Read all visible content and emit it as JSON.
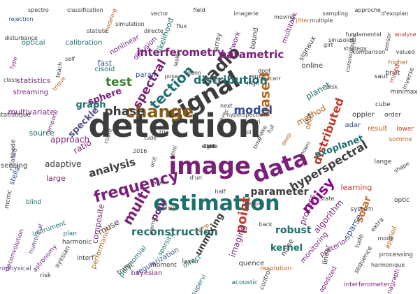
{
  "words": [
    {
      "text": "detection",
      "size": 46,
      "color": "c0",
      "rot": 0
    },
    {
      "text": "signal",
      "size": 34,
      "color": "c0",
      "rot": -30
    },
    {
      "text": "image",
      "size": 34,
      "color": "c1",
      "rot": 0
    },
    {
      "text": "data",
      "size": 32,
      "color": "c1",
      "rot": -20
    },
    {
      "text": "estimation",
      "size": 30,
      "color": "c2",
      "rot": 0
    },
    {
      "text": "frequency",
      "size": 22,
      "color": "c1",
      "rot": -15
    },
    {
      "text": "change",
      "size": 24,
      "color": "c3",
      "rot": 0
    },
    {
      "text": "radio",
      "size": 24,
      "color": "c0",
      "rot": -45
    },
    {
      "text": "tection",
      "size": 20,
      "color": "c2",
      "rot": -45
    },
    {
      "text": "multi",
      "size": 20,
      "color": "c1",
      "rot": -60
    },
    {
      "text": "based",
      "size": 19,
      "color": "c8",
      "rot": -90
    },
    {
      "text": "noisy",
      "size": 20,
      "color": "c15",
      "rot": -50
    },
    {
      "text": "model",
      "size": 16,
      "color": "c4",
      "rot": 0
    },
    {
      "text": "point",
      "size": 18,
      "color": "c5",
      "rot": -80
    },
    {
      "text": "phase",
      "size": 17,
      "color": "c0",
      "rot": 0
    },
    {
      "text": "spectral",
      "size": 17,
      "color": "c1",
      "rot": -60
    },
    {
      "text": "hyperspectral",
      "size": 16,
      "color": "c0",
      "rot": -30
    },
    {
      "text": "distributed",
      "size": 16,
      "color": "c5",
      "rot": -70
    },
    {
      "text": "distribution",
      "size": 16,
      "color": "c2",
      "rot": 0
    },
    {
      "text": "parametric",
      "size": 15,
      "color": "c1",
      "rot": 0
    },
    {
      "text": "interferometry",
      "size": 15,
      "color": "c1",
      "rot": 0
    },
    {
      "text": "reconstruction",
      "size": 15,
      "color": "c2",
      "rot": 0
    },
    {
      "text": "analysis",
      "size": 15,
      "color": "c0",
      "rot": -15
    },
    {
      "text": "test",
      "size": 17,
      "color": "c6",
      "rot": 0
    },
    {
      "text": "sphere",
      "size": 13,
      "color": "c1",
      "rot": -20
    },
    {
      "text": "graph",
      "size": 13,
      "color": "c2",
      "rot": 0
    },
    {
      "text": "speckle",
      "size": 13,
      "color": "c9",
      "rot": -45
    },
    {
      "text": "solar",
      "size": 14,
      "color": "c13",
      "rot": -70
    },
    {
      "text": "parameter",
      "size": 14,
      "color": "c0",
      "rot": 0
    },
    {
      "text": "exoplanet",
      "size": 13,
      "color": "c2",
      "rot": -20
    },
    {
      "text": "robust",
      "size": 14,
      "color": "c2",
      "rot": 0
    },
    {
      "text": "kernel",
      "size": 13,
      "color": "c2",
      "rot": 0
    },
    {
      "text": "unmixing",
      "size": 13,
      "color": "c0",
      "rot": -60
    },
    {
      "text": "pour",
      "size": 13,
      "color": "c1",
      "rot": -60
    },
    {
      "text": "muse",
      "size": 12,
      "color": "c0",
      "rot": -30
    },
    {
      "text": "composite",
      "size": 11,
      "color": "c1",
      "rot": -80
    },
    {
      "text": "adaptive",
      "size": 12,
      "color": "c0",
      "rot": 0
    },
    {
      "text": "approach",
      "size": 12,
      "color": "c1",
      "rot": 0
    },
    {
      "text": "ratio",
      "size": 12,
      "color": "c1",
      "rot": -30
    },
    {
      "text": "source",
      "size": 11,
      "color": "c2",
      "rot": 0
    },
    {
      "text": "planet",
      "size": 12,
      "color": "c2",
      "rot": -30
    },
    {
      "text": "method",
      "size": 12,
      "color": "c8",
      "rot": -30
    },
    {
      "text": "sparse",
      "size": 12,
      "color": "c4",
      "rot": -60
    },
    {
      "text": "algorithm",
      "size": 12,
      "color": "c1",
      "rot": -50
    },
    {
      "text": "process",
      "size": 12,
      "color": "c1",
      "rot": -70
    },
    {
      "text": "imaging",
      "size": 12,
      "color": "c1",
      "rot": -70
    },
    {
      "text": "learning",
      "size": 11,
      "color": "c5",
      "rot": 0
    },
    {
      "text": "performance",
      "size": 10,
      "color": "c8",
      "rot": -70
    },
    {
      "text": "large",
      "size": 11,
      "color": "c1",
      "rot": 0
    },
    {
      "text": "multivariate",
      "size": 11,
      "color": "c1",
      "rot": 0
    },
    {
      "text": "statistics",
      "size": 11,
      "color": "c1",
      "rot": 0
    },
    {
      "text": "fast",
      "size": 11,
      "color": "c4",
      "rot": 0
    },
    {
      "text": "likelihood",
      "size": 11,
      "color": "c2",
      "rot": -70
    },
    {
      "text": "param",
      "size": 10,
      "color": "c4",
      "rot": 0
    },
    {
      "text": "array",
      "size": 10,
      "color": "c0",
      "rot": -80
    },
    {
      "text": "network",
      "size": 10,
      "color": "c1",
      "rot": -70
    },
    {
      "text": "bound",
      "size": 10,
      "color": "c0",
      "rot": -80
    },
    {
      "text": "multitask",
      "size": 10,
      "color": "c1",
      "rot": -70
    },
    {
      "text": "signaux",
      "size": 10,
      "color": "c0",
      "rot": -60
    },
    {
      "text": "online",
      "size": 10,
      "color": "c0",
      "rot": 0
    },
    {
      "text": "cisoid",
      "size": 10,
      "color": "c2",
      "rot": 0
    },
    {
      "text": "nonlinear",
      "size": 10,
      "color": "c1",
      "rot": -30
    },
    {
      "text": "diffusion",
      "size": 10,
      "color": "c1",
      "rot": -45
    },
    {
      "text": "calibration",
      "size": 10,
      "color": "c2",
      "rot": 0
    },
    {
      "text": "optical",
      "size": 10,
      "color": "c2",
      "rot": 0
    },
    {
      "text": "streaming",
      "size": 10,
      "color": "c1",
      "rot": 0
    },
    {
      "text": "stellar",
      "size": 10,
      "color": "c4",
      "rot": -70
    },
    {
      "text": "sensing",
      "size": 10,
      "color": "c0",
      "rot": 0
    },
    {
      "text": "monitoring",
      "size": 10,
      "color": "c1",
      "rot": -50
    },
    {
      "text": "regularization",
      "size": 10,
      "color": "c4",
      "rot": -30
    },
    {
      "text": "direct",
      "size": 10,
      "color": "c2",
      "rot": -30
    },
    {
      "text": "bayesian",
      "size": 10,
      "color": "c1",
      "rot": 0
    },
    {
      "text": "polynomial",
      "size": 10,
      "color": "c2",
      "rot": -50
    },
    {
      "text": "posterior",
      "size": 10,
      "color": "c1",
      "rot": -30
    },
    {
      "text": "acoustic",
      "size": 9,
      "color": "c2",
      "rot": 0
    },
    {
      "text": "plan",
      "size": 9,
      "color": "c2",
      "rot": 0
    },
    {
      "text": "quence",
      "size": 10,
      "color": "c0",
      "rot": 0
    },
    {
      "text": "noise",
      "size": 10,
      "color": "c0",
      "rot": -60
    },
    {
      "text": "control",
      "size": 9,
      "color": "c0",
      "rot": -70
    },
    {
      "text": "linear",
      "size": 10,
      "color": "c0",
      "rot": -80
    },
    {
      "text": "adar",
      "size": 10,
      "color": "c4",
      "rot": 0
    },
    {
      "text": "oppler",
      "size": 10,
      "color": "c0",
      "rot": 0
    },
    {
      "text": "result",
      "size": 10,
      "color": "c8",
      "rot": 0
    },
    {
      "text": "cube",
      "size": 9,
      "color": "c0",
      "rot": 0
    },
    {
      "text": "order",
      "size": 9,
      "color": "c0",
      "rot": 0
    },
    {
      "text": "minimax",
      "size": 9,
      "color": "c0",
      "rot": 0
    },
    {
      "text": "higher",
      "size": 9,
      "color": "c8",
      "rot": 0
    },
    {
      "text": "inverse",
      "size": 9,
      "color": "c0",
      "rot": -70
    },
    {
      "text": "saut",
      "size": 9,
      "color": "c0",
      "rot": 0
    },
    {
      "text": "bruit",
      "size": 9,
      "color": "c0",
      "rot": 0
    },
    {
      "text": "mixed",
      "size": 9,
      "color": "c5",
      "rot": -70
    },
    {
      "text": "lower",
      "size": 9,
      "color": "c5",
      "rot": 0
    },
    {
      "text": "somme",
      "size": 9,
      "color": "c8",
      "rot": 0
    },
    {
      "text": "statistique",
      "size": 9,
      "color": "c0",
      "rot": 0
    },
    {
      "text": "thode",
      "size": 9,
      "color": "c0",
      "rot": -90
    },
    {
      "text": "related",
      "size": 9,
      "color": "c9",
      "rot": -80
    },
    {
      "text": "mcmc",
      "size": 9,
      "color": "c0",
      "rot": -80
    },
    {
      "text": "blind",
      "size": 9,
      "color": "c2",
      "rot": 0
    },
    {
      "text": "instrument",
      "size": 9,
      "color": "c2",
      "rot": -20
    },
    {
      "text": "harmonic",
      "size": 9,
      "color": "c0",
      "rot": 0
    },
    {
      "text": "numerical",
      "size": 9,
      "color": "c9",
      "rot": -70
    },
    {
      "text": "deconvolution",
      "size": 9,
      "color": "c1",
      "rot": -70
    },
    {
      "text": "astrophysical",
      "size": 9,
      "color": "c9",
      "rot": 0
    },
    {
      "text": "risk",
      "size": 9,
      "color": "c0",
      "rot": 0
    },
    {
      "text": "astronomy",
      "size": 9,
      "color": "c1",
      "rot": -50
    },
    {
      "text": "ayesian",
      "size": 9,
      "color": "c0",
      "rot": -60
    },
    {
      "text": "interf",
      "size": 9,
      "color": "c0",
      "rot": 0
    },
    {
      "text": "traffic",
      "size": 9,
      "color": "c0",
      "rot": -30
    },
    {
      "text": "lasso",
      "size": 9,
      "color": "c0",
      "rot": 0
    },
    {
      "text": "sparsity",
      "size": 9,
      "color": "c2",
      "rot": -60
    },
    {
      "text": "moment",
      "size": 9,
      "color": "c0",
      "rot": 0
    },
    {
      "text": "supervi",
      "size": 9,
      "color": "c2",
      "rot": -60
    },
    {
      "text": "resolution",
      "size": 9,
      "color": "c8",
      "rot": 0
    },
    {
      "text": "apodized",
      "size": 9,
      "color": "c1",
      "rot": -60
    },
    {
      "text": "sequence",
      "size": 9,
      "color": "c0",
      "rot": -60
    },
    {
      "text": "harmonique",
      "size": 8,
      "color": "c0",
      "rot": 0
    },
    {
      "text": "interferometer",
      "size": 9,
      "color": "c1",
      "rot": 0
    },
    {
      "text": "coronagraph",
      "size": 9,
      "color": "c1",
      "rot": -70
    },
    {
      "text": "processing",
      "size": 9,
      "color": "c0",
      "rot": 0
    },
    {
      "text": "applied",
      "size": 9,
      "color": "c8",
      "rot": -70
    },
    {
      "text": "extra",
      "size": 9,
      "color": "c0",
      "rot": -50
    },
    {
      "text": "mode",
      "size": 8,
      "color": "c0",
      "rot": 0
    },
    {
      "text": "tude",
      "size": 9,
      "color": "c0",
      "rot": -70
    },
    {
      "text": "system",
      "size": 9,
      "color": "c0",
      "rot": 0
    },
    {
      "text": "optic",
      "size": 9,
      "color": "c0",
      "rot": 0
    },
    {
      "text": "shape",
      "size": 8,
      "color": "c0",
      "rot": -30
    },
    {
      "text": "lange",
      "size": 9,
      "color": "c0",
      "rot": 0
    },
    {
      "text": "state",
      "size": 8,
      "color": "c0",
      "rot": 0
    },
    {
      "text": "seaux",
      "size": 8,
      "color": "c0",
      "rot": 0
    },
    {
      "text": "back",
      "size": 8,
      "color": "c0",
      "rot": 0
    },
    {
      "text": "d'un",
      "size": 8,
      "color": "c0",
      "rot": 0
    },
    {
      "text": "aire",
      "size": 8,
      "color": "c0",
      "rot": 0
    },
    {
      "text": "lyot",
      "size": 8,
      "color": "c8",
      "rot": 0
    },
    {
      "text": "amma",
      "size": 8,
      "color": "c0",
      "rot": -80
    },
    {
      "text": "unit",
      "size": 8,
      "color": "c0",
      "rot": -70
    },
    {
      "text": "jump",
      "size": 8,
      "color": "c8",
      "rot": -30
    },
    {
      "text": "half",
      "size": 8,
      "color": "c0",
      "rot": 0
    },
    {
      "text": "2016",
      "size": 8,
      "color": "c0",
      "rot": 0
    },
    {
      "text": "semi",
      "size": 8,
      "color": "c0",
      "rot": -70
    },
    {
      "text": "trie",
      "size": 8,
      "color": "c0",
      "rot": 0
    },
    {
      "text": "tude",
      "size": 8,
      "color": "c0",
      "rot": 0
    },
    {
      "text": "count",
      "size": 8,
      "color": "c0",
      "rot": -70
    },
    {
      "text": "known",
      "size": 8,
      "color": "c0",
      "rot": -60
    },
    {
      "text": "disk",
      "size": 8,
      "color": "c0",
      "rot": 0
    },
    {
      "text": "shift",
      "size": 8,
      "color": "c0",
      "rot": -70
    },
    {
      "text": "ppler",
      "size": 8,
      "color": "c8",
      "rot": -70
    },
    {
      "text": "deep",
      "size": 8,
      "color": "c8",
      "rot": -60
    },
    {
      "text": "time",
      "size": 8,
      "color": "c0",
      "rot": -60
    },
    {
      "text": "make",
      "size": 8,
      "color": "c0",
      "rot": -60
    },
    {
      "text": "vari",
      "size": 8,
      "color": "c0",
      "rot": 0
    },
    {
      "text": "hyperspectrale",
      "size": 8,
      "color": "c0",
      "rot": 0
    },
    {
      "text": "tool",
      "size": 8,
      "color": "c0",
      "rot": 0
    },
    {
      "text": "full",
      "size": 8,
      "color": "c0",
      "rot": -60
    },
    {
      "text": "next",
      "size": 8,
      "color": "c0",
      "rot": 0
    },
    {
      "text": "avec",
      "size": 8,
      "color": "c0",
      "rot": -60
    },
    {
      "text": "high",
      "size": 8,
      "color": "c0",
      "rot": 0
    },
    {
      "text": "erom",
      "size": 8,
      "color": "c0",
      "rot": 0
    },
    {
      "text": "carr",
      "size": 8,
      "color": "c0",
      "rot": 0
    },
    {
      "text": "dppt",
      "size": 8,
      "color": "c0",
      "rot": 0
    },
    {
      "text": "donn",
      "size": 8,
      "color": "c0",
      "rot": 0
    },
    {
      "text": "blur",
      "size": 8,
      "color": "c0",
      "rot": 0
    },
    {
      "text": "pose",
      "size": 8,
      "color": "c0",
      "rot": 0
    },
    {
      "text": "leaky",
      "size": 8,
      "color": "c0",
      "rot": -80
    },
    {
      "text": "teach",
      "size": 8,
      "color": "c0",
      "rot": -80
    },
    {
      "text": "self",
      "size": 8,
      "color": "c0",
      "rot": 0
    },
    {
      "text": "trique",
      "size": 8,
      "color": "c8",
      "rot": -50
    },
    {
      "text": "class",
      "size": 8,
      "color": "c0",
      "rot": 0
    },
    {
      "text": "type",
      "size": 8,
      "color": "c1",
      "rot": -70
    },
    {
      "text": "spectro",
      "size": 8,
      "color": "c0",
      "rot": 0
    },
    {
      "text": "rejection",
      "size": 8,
      "color": "c4",
      "rot": 0
    },
    {
      "text": "disturbance",
      "size": 8,
      "color": "c0",
      "rot": 0
    },
    {
      "text": "classification",
      "size": 8,
      "color": "c0",
      "rot": 0
    },
    {
      "text": "statistic",
      "size": 8,
      "color": "c0",
      "rot": 0
    },
    {
      "text": "modeling",
      "size": 8,
      "color": "c8",
      "rot": -70
    },
    {
      "text": "simulation",
      "size": 8,
      "color": "c0",
      "rot": 0
    },
    {
      "text": "directe",
      "size": 8,
      "color": "c0",
      "rot": 0
    },
    {
      "text": "vector",
      "size": 8,
      "color": "c0",
      "rot": 0
    },
    {
      "text": "field",
      "size": 8,
      "color": "c0",
      "rot": 0
    },
    {
      "text": "flux",
      "size": 8,
      "color": "c0",
      "rot": 0
    },
    {
      "text": "imagerie",
      "size": 8,
      "color": "c0",
      "rot": 0
    },
    {
      "text": "moving",
      "size": 8,
      "color": "c0",
      "rot": 0
    },
    {
      "text": "jitter",
      "size": 8,
      "color": "c8",
      "rot": 0
    },
    {
      "text": "multiple",
      "size": 8,
      "color": "c0",
      "rot": 0
    },
    {
      "text": "sampling",
      "size": 8,
      "color": "c0",
      "rot": 0
    },
    {
      "text": "approche",
      "size": 8,
      "color": "c0",
      "rot": 0
    },
    {
      "text": "d'exoplan",
      "size": 8,
      "color": "c0",
      "rot": 0
    },
    {
      "text": "valued",
      "size": 8,
      "color": "c0",
      "rot": 0
    },
    {
      "text": "analyse",
      "size": 8,
      "color": "c5",
      "rot": 0
    },
    {
      "text": "fundamental",
      "size": 8,
      "color": "c0",
      "rot": 0
    },
    {
      "text": "comparison",
      "size": 8,
      "color": "c0",
      "rot": 0
    },
    {
      "text": "coronographic",
      "size": 8,
      "color": "c0",
      "rot": -80
    },
    {
      "text": "glrt",
      "size": 8,
      "color": "c0",
      "rot": 0
    },
    {
      "text": "sinusoidal",
      "size": 8,
      "color": "c0",
      "rot": 0
    },
    {
      "text": "strategy",
      "size": 8,
      "color": "c0",
      "rot": 0
    },
    {
      "text": "sensor",
      "size": 8,
      "color": "c0",
      "rot": -80
    },
    {
      "text": "temporal",
      "size": 8,
      "color": "c1",
      "rot": -70
    },
    {
      "text": "link",
      "size": 8,
      "color": "c0",
      "rot": 0
    },
    {
      "text": "light",
      "size": 8,
      "color": "c0",
      "rot": 0
    },
    {
      "text": "etude",
      "size": 8,
      "color": "c0",
      "rot": 0
    }
  ]
}
